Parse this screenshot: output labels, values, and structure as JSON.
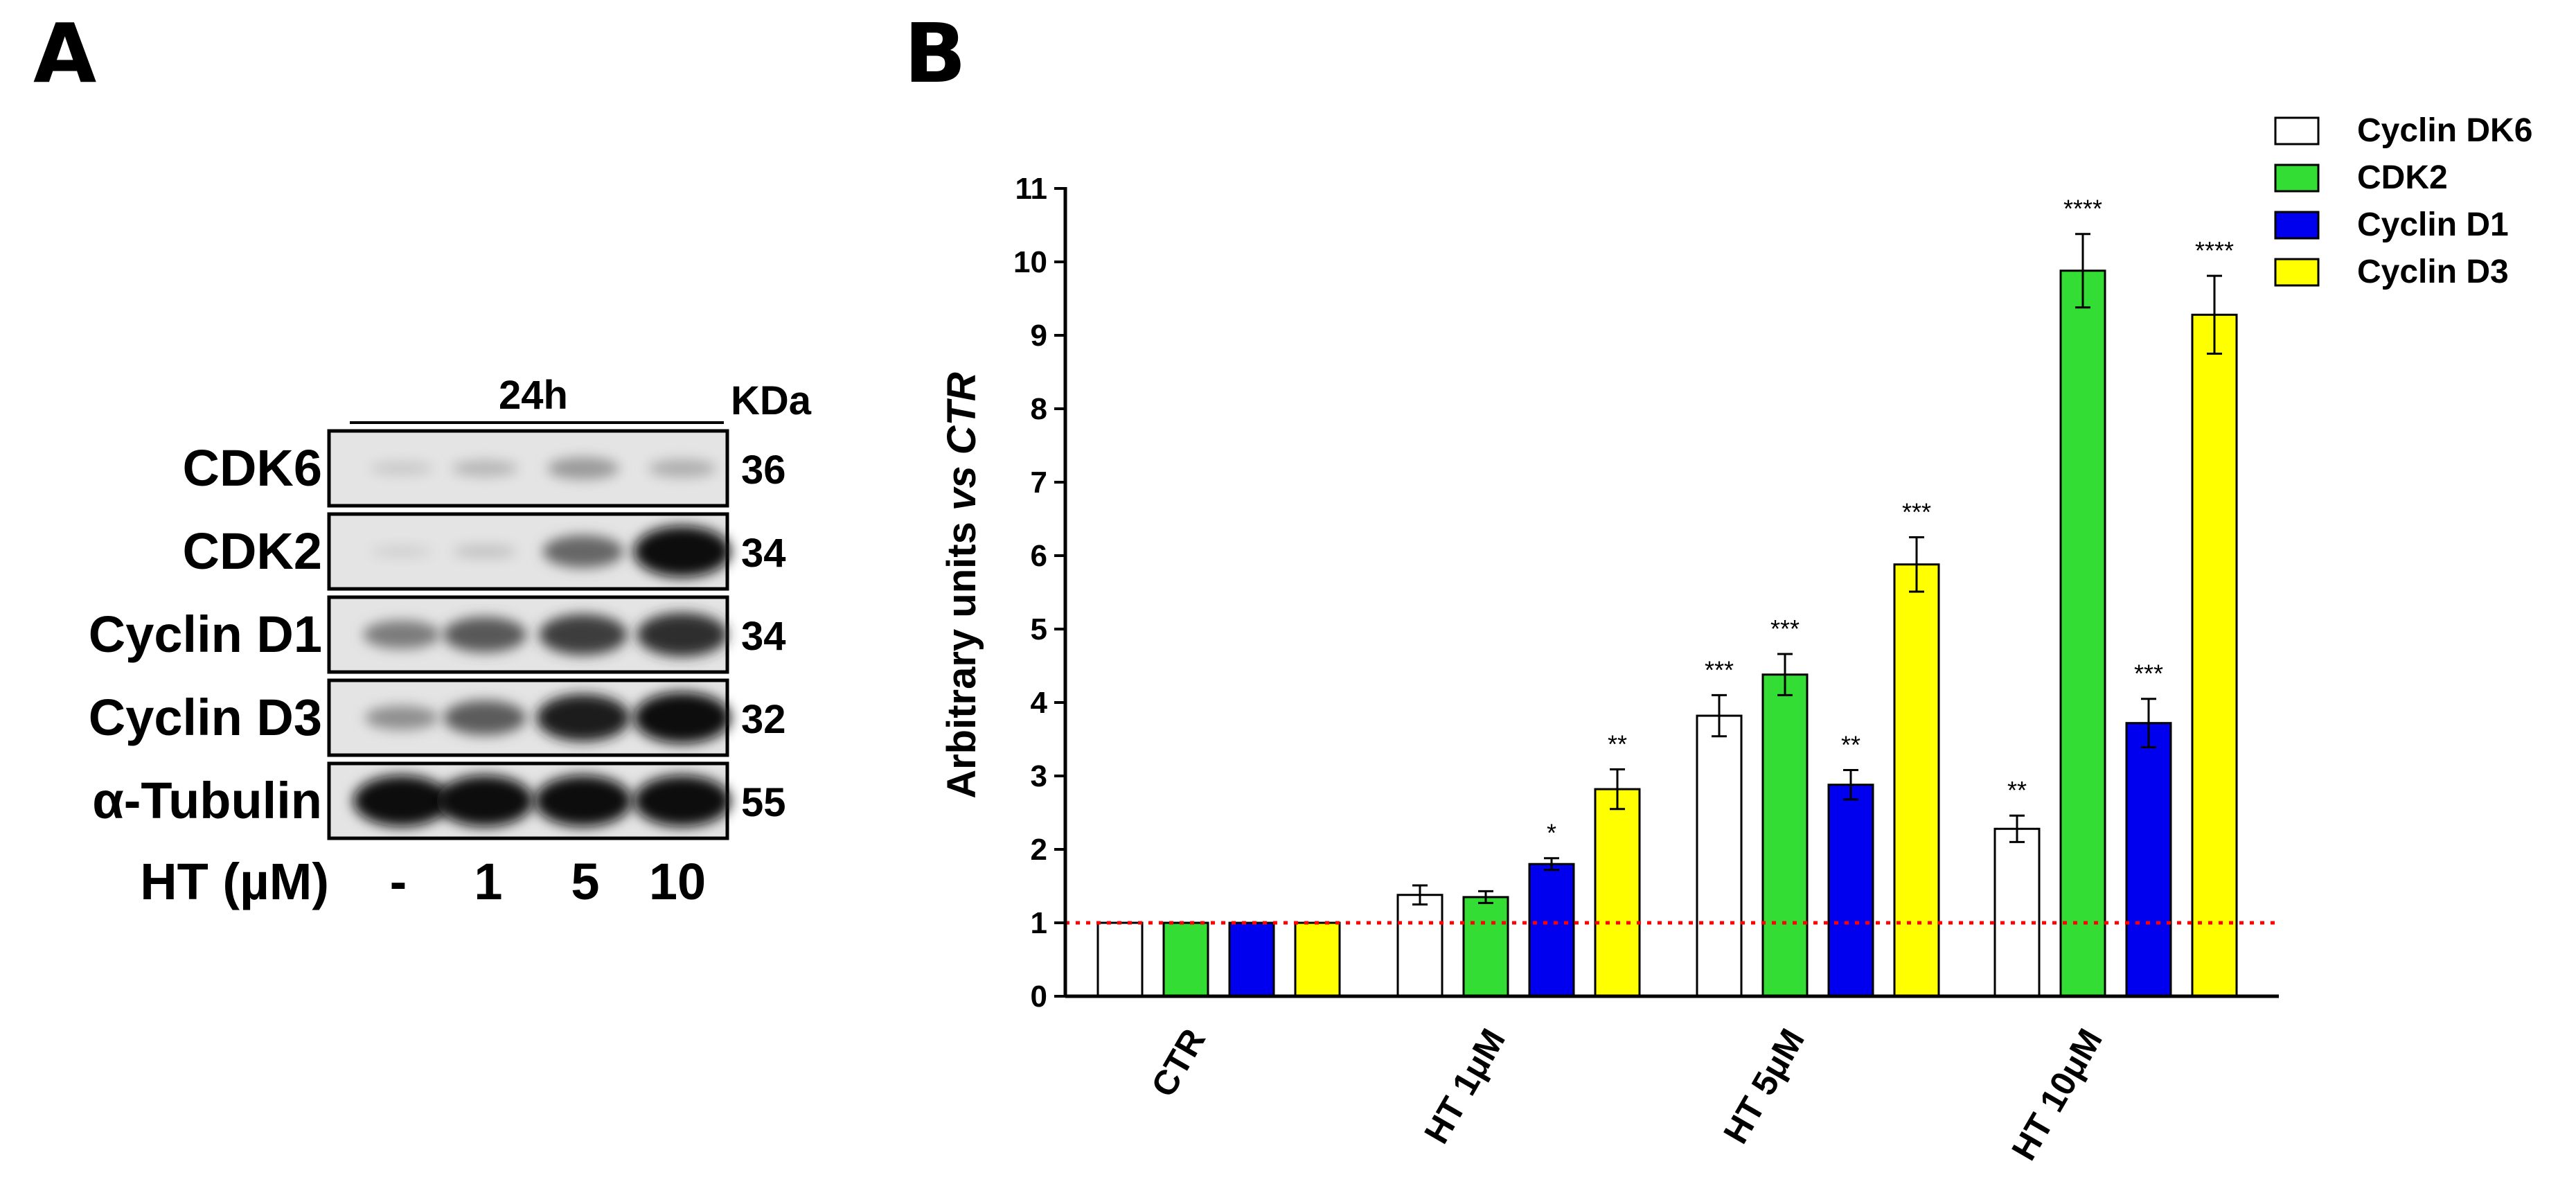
{
  "panels": {
    "a": "A",
    "b": "B"
  },
  "blot": {
    "time_label": "24h",
    "unit_header": "KDa",
    "rows": [
      {
        "label": "CDK6",
        "kda": "36",
        "bands": [
          0.08,
          0.16,
          0.3,
          0.2
        ]
      },
      {
        "label": "CDK2",
        "kda": "34",
        "bands": [
          0.04,
          0.1,
          0.55,
          1.0
        ]
      },
      {
        "label": "Cyclin D1",
        "kda": "34",
        "bands": [
          0.45,
          0.62,
          0.75,
          0.82
        ]
      },
      {
        "label": "Cyclin D3",
        "kda": "32",
        "bands": [
          0.35,
          0.6,
          0.9,
          1.0
        ]
      },
      {
        "label": "α-Tubulin",
        "kda": "55",
        "bands": [
          1.0,
          1.0,
          1.0,
          1.0
        ]
      }
    ],
    "treatment_label": "HT (µM)",
    "doses": [
      "-",
      "1",
      "5",
      "10"
    ]
  },
  "chart_data": {
    "type": "bar",
    "title": "",
    "xlabel": "",
    "ylabel_prefix": "Arbitrary units ",
    "ylabel_italic": "vs CTR",
    "ylim": [
      0,
      11
    ],
    "yticks": [
      "0",
      "1",
      "2",
      "3",
      "4",
      "5",
      "6",
      "7",
      "8",
      "9",
      "10",
      "11"
    ],
    "categories": [
      "CTR",
      "HT 1μM",
      "HT 5μM",
      "HT 10μM"
    ],
    "reference_line": 1,
    "reference_color": "#ff0000",
    "series": [
      {
        "name": "Cyclin DK6",
        "color": "#ffffff",
        "values": [
          1.0,
          1.38,
          3.82,
          2.28
        ],
        "errors": [
          0,
          0.13,
          0.28,
          0.18
        ],
        "sig": [
          "",
          "",
          "***",
          "**"
        ]
      },
      {
        "name": "CDK2",
        "color": "#33dd33",
        "values": [
          1.0,
          1.35,
          4.38,
          9.88
        ],
        "errors": [
          0,
          0.08,
          0.28,
          0.5
        ],
        "sig": [
          "",
          "",
          "***",
          "****"
        ]
      },
      {
        "name": "Cyclin D1",
        "color": "#0000ee",
        "values": [
          1.0,
          1.8,
          2.88,
          3.72
        ],
        "errors": [
          0,
          0.08,
          0.2,
          0.33
        ],
        "sig": [
          "",
          "*",
          "**",
          "***"
        ]
      },
      {
        "name": "Cyclin D3",
        "color": "#ffff00",
        "values": [
          1.0,
          2.82,
          5.88,
          9.28
        ],
        "errors": [
          0,
          0.27,
          0.37,
          0.53
        ],
        "sig": [
          "",
          "**",
          "***",
          "****"
        ]
      }
    ],
    "legend_position": "top-right"
  }
}
